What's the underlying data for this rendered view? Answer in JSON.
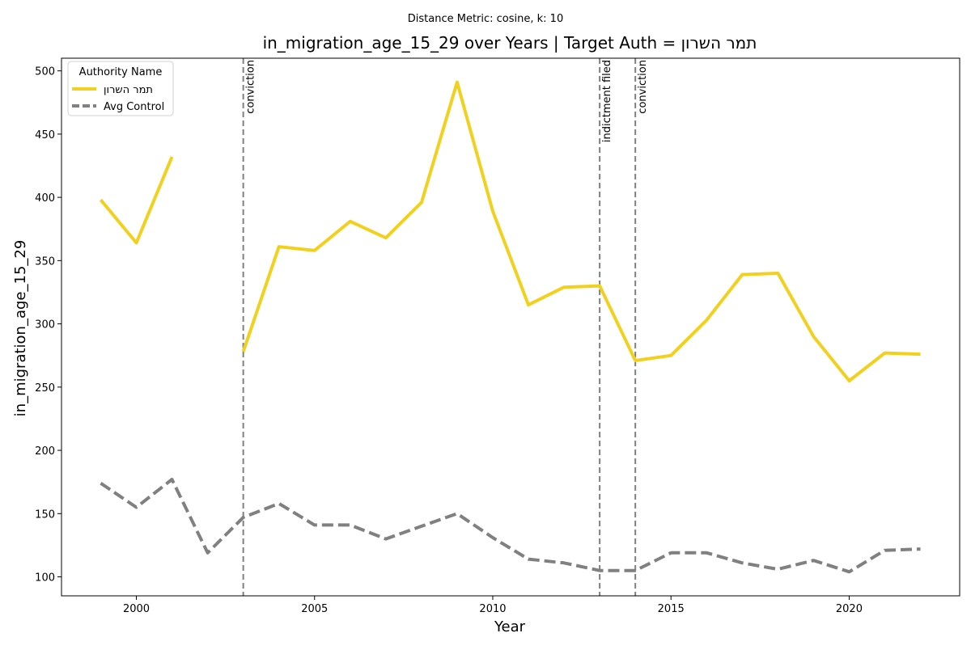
{
  "suptitle": "Distance Metric: cosine, k: 10",
  "chart_data": {
    "type": "line",
    "title": "in_migration_age_15_29 over Years | Target Auth = תמר השרון",
    "xlabel": "Year",
    "ylabel": "in_migration_age_15_29",
    "xlim": [
      1997.9,
      2023.1
    ],
    "ylim": [
      85,
      510
    ],
    "grid": false,
    "x_ticks": [
      2000,
      2005,
      2010,
      2015,
      2020
    ],
    "y_ticks": [
      100,
      150,
      200,
      250,
      300,
      350,
      400,
      450,
      500
    ],
    "legend": {
      "title": "Authority Name",
      "placement": "top-left"
    },
    "x": [
      1999,
      2000,
      2001,
      2002,
      2003,
      2004,
      2005,
      2006,
      2007,
      2008,
      2009,
      2010,
      2011,
      2012,
      2013,
      2014,
      2015,
      2016,
      2017,
      2018,
      2019,
      2020,
      2021,
      2022
    ],
    "series": [
      {
        "name": "תמר השרון",
        "color": "#f2d01e",
        "style": "solid",
        "values": [
          398,
          364,
          432,
          null,
          278,
          361,
          358,
          381,
          368,
          396,
          491,
          389,
          315,
          329,
          330,
          271,
          275,
          303,
          339,
          340,
          290,
          255,
          277,
          276
        ]
      },
      {
        "name": "Avg Control",
        "color": "#808080",
        "style": "dashed",
        "values": [
          174,
          155,
          177,
          119,
          147,
          158,
          141,
          141,
          130,
          140,
          150,
          131,
          114,
          111,
          105,
          105,
          119,
          119,
          111,
          106,
          113,
          104,
          121,
          122
        ]
      }
    ],
    "events": [
      {
        "x": 2003,
        "label": "conviction"
      },
      {
        "x": 2013,
        "label": "indictment filed"
      },
      {
        "x": 2014,
        "label": "conviction"
      }
    ]
  }
}
